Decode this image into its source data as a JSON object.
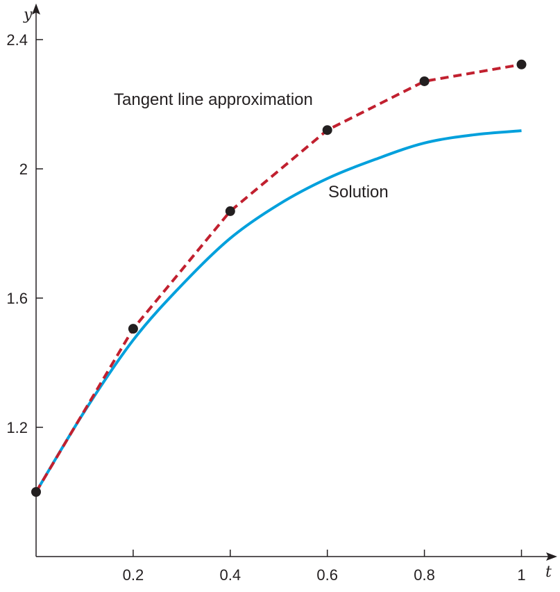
{
  "chart_data": {
    "type": "line",
    "title": "",
    "xlabel": "t",
    "ylabel": "y",
    "xlim": [
      0,
      1.07
    ],
    "ylim": [
      0.8,
      2.48
    ],
    "grid": false,
    "x_ticks": [
      0.2,
      0.4,
      0.6,
      0.8,
      1
    ],
    "x_tick_labels": [
      "0.2",
      "0.4",
      "0.6",
      "0.8",
      "1"
    ],
    "y_ticks": [
      1.2,
      1.6,
      2,
      2.4
    ],
    "y_tick_labels": [
      "1.2",
      "1.6",
      "2",
      "2.4"
    ],
    "series": [
      {
        "name": "Tangent line approximation",
        "style": "dashed-with-markers",
        "color": "#c1202f",
        "marker_color": "#231f20",
        "x": [
          0,
          0.2,
          0.4,
          0.6,
          0.8,
          1
        ],
        "y": [
          1,
          1.505,
          1.869,
          2.12,
          2.271,
          2.323
        ]
      },
      {
        "name": "Solution",
        "style": "solid",
        "color": "#00a0dc",
        "x": [
          0,
          0.1,
          0.2,
          0.3,
          0.4,
          0.5,
          0.6,
          0.7,
          0.8,
          0.9,
          1
        ],
        "y": [
          1,
          1.25,
          1.47,
          1.64,
          1.785,
          1.89,
          1.97,
          2.03,
          2.08,
          2.105,
          2.118
        ]
      }
    ],
    "annotations": [
      "Tangent line approximation",
      "Solution"
    ]
  }
}
